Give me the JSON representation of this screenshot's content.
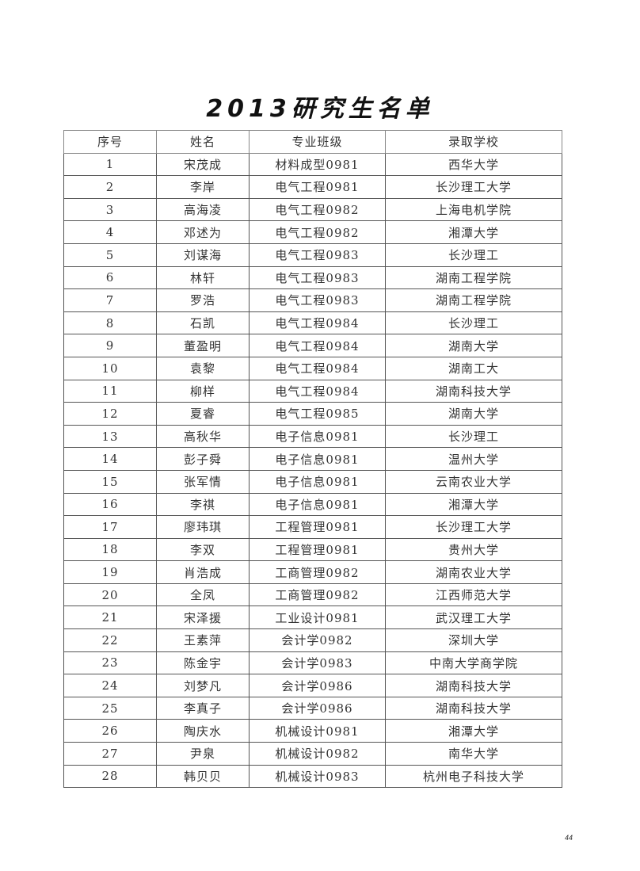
{
  "title": "2013研究生名单",
  "table": {
    "headers": [
      "序号",
      "姓名",
      "专业班级",
      "录取学校"
    ],
    "rows": [
      [
        "1",
        "宋茂成",
        "材料成型0981",
        "西华大学"
      ],
      [
        "2",
        "李岸",
        "电气工程0981",
        "长沙理工大学"
      ],
      [
        "3",
        "高海凌",
        "电气工程0982",
        "上海电机学院"
      ],
      [
        "4",
        "邓述为",
        "电气工程0982",
        "湘潭大学"
      ],
      [
        "5",
        "刘谋海",
        "电气工程0983",
        "长沙理工"
      ],
      [
        "6",
        "林轩",
        "电气工程0983",
        "湖南工程学院"
      ],
      [
        "7",
        "罗浩",
        "电气工程0983",
        "湖南工程学院"
      ],
      [
        "8",
        "石凯",
        "电气工程0984",
        "长沙理工"
      ],
      [
        "9",
        "董盈明",
        "电气工程0984",
        "湖南大学"
      ],
      [
        "10",
        "袁黎",
        "电气工程0984",
        "湖南工大"
      ],
      [
        "11",
        "柳样",
        "电气工程0984",
        "湖南科技大学"
      ],
      [
        "12",
        "夏睿",
        "电气工程0985",
        "湖南大学"
      ],
      [
        "13",
        "高秋华",
        "电子信息0981",
        "长沙理工"
      ],
      [
        "14",
        "彭子舜",
        "电子信息0981",
        "温州大学"
      ],
      [
        "15",
        "张军情",
        "电子信息0981",
        "云南农业大学"
      ],
      [
        "16",
        "李祺",
        "电子信息0981",
        "湘潭大学"
      ],
      [
        "17",
        "廖玮琪",
        "工程管理0981",
        "长沙理工大学"
      ],
      [
        "18",
        "李双",
        "工程管理0981",
        "贵州大学"
      ],
      [
        "19",
        "肖浩成",
        "工商管理0982",
        "湖南农业大学"
      ],
      [
        "20",
        "全凤",
        "工商管理0982",
        "江西师范大学"
      ],
      [
        "21",
        "宋泽援",
        "工业设计0981",
        "武汉理工大学"
      ],
      [
        "22",
        "王素萍",
        "会计学0982",
        "深圳大学"
      ],
      [
        "23",
        "陈金宇",
        "会计学0983",
        "中南大学商学院"
      ],
      [
        "24",
        "刘梦凡",
        "会计学0986",
        "湖南科技大学"
      ],
      [
        "25",
        "李真子",
        "会计学0986",
        "湖南科技大学"
      ],
      [
        "26",
        "陶庆水",
        "机械设计0981",
        "湘潭大学"
      ],
      [
        "27",
        "尹泉",
        "机械设计0982",
        "南华大学"
      ],
      [
        "28",
        "韩贝贝",
        "机械设计0983",
        "杭州电子科技大学"
      ]
    ]
  },
  "page_number": "44"
}
